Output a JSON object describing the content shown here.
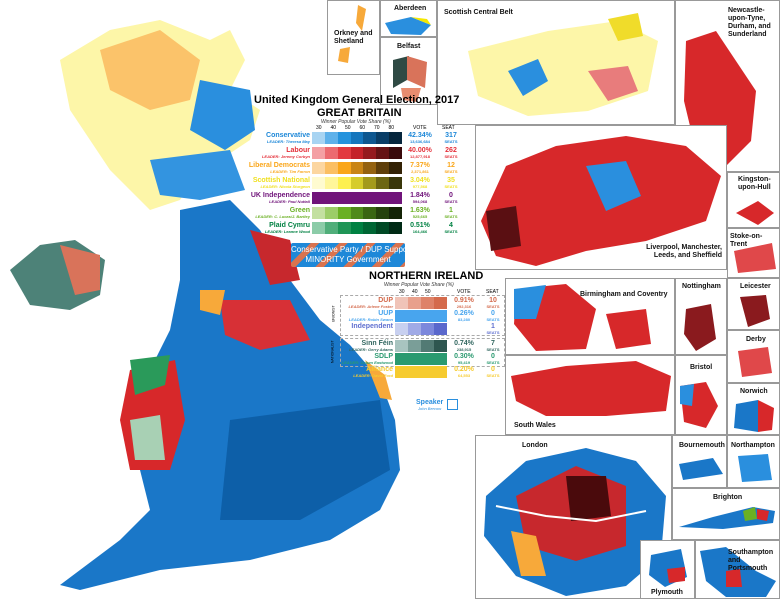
{
  "title": "United Kingdom General Election, 2017",
  "colors": {
    "conservative": "#0087DC",
    "labour": "#DC241F",
    "libdem": "#FAA61A",
    "snp": "#FDF38E",
    "ukip": "#70147A",
    "green": "#6AB023",
    "plaid": "#008142",
    "dup": "#D46A4C",
    "uup": "#48A5EE",
    "sinnfein": "#326760",
    "sdlp": "#2AA82C",
    "alliance": "#F6CB2F",
    "water": "#ffffff"
  },
  "great_britain": {
    "heading": "GREAT BRITAIN",
    "subtitle": "Winner Popular Vote Share (%)",
    "ticks": [
      "30",
      "40",
      "50",
      "60",
      "70",
      "80"
    ],
    "vote_header": "VOTE",
    "seat_header": "SEAT",
    "parties": [
      {
        "name": "Conservative",
        "leader": "LEADER: Theresa May",
        "vote": "42.34%",
        "votes": "13,636,684",
        "seats": "317",
        "seats_label": "SEATS",
        "color": "#1e88d8",
        "shades": [
          "#a8d4f2",
          "#5eb1ea",
          "#2593dd",
          "#1576bd",
          "#0e5790",
          "#093d66",
          "#06263d"
        ]
      },
      {
        "name": "Labour",
        "leader": "LEADER: Jeremy Corbyn",
        "vote": "40.00%",
        "votes": "12,877,918",
        "seats": "262",
        "seats_label": "SEATS",
        "color": "#e4303a",
        "shades": [
          "#f4a0a4",
          "#ec6a70",
          "#e23a40",
          "#c4222a",
          "#951a1f",
          "#651214",
          "#3a0a0b"
        ]
      },
      {
        "name": "Liberal Democrats",
        "leader": "LEADER: Tim Farron",
        "vote": "7.37%",
        "votes": "2,371,861",
        "seats": "12",
        "seats_label": "SEATS",
        "color": "#faa61a",
        "shades": [
          "#fcd6a0",
          "#fbbf63",
          "#faa61a",
          "#c98515",
          "#946210",
          "#5e3e0a",
          "#332205"
        ]
      },
      {
        "name": "Scottish National",
        "leader": "LEADER: Nicola Sturgeon",
        "vote": "3.04%",
        "votes": "977,568",
        "seats": "35",
        "seats_label": "SEATS",
        "color": "#f0e020",
        "shades": [
          "#fffbd0",
          "#fff69a",
          "#fdf050",
          "#d6cc2a",
          "#a39a1c",
          "#6c6612",
          "#3a370a"
        ]
      },
      {
        "name": "UK Independence",
        "leader": "LEADER: Paul Nuttall",
        "vote": "1.84%",
        "votes": "594,068",
        "seats": "0",
        "seats_label": "SEATS",
        "color": "#70147a",
        "shades": [
          "#70147a"
        ]
      },
      {
        "name": "Green",
        "leader": "LEADER: C. Lucas/J. Bartley",
        "vote": "1.63%",
        "votes": "525,665",
        "seats": "1",
        "seats_label": "SEATS",
        "color": "#6ab023",
        "shades": [
          "#c3e0a0",
          "#9ccd68",
          "#6ab023",
          "#4f8a1a",
          "#3a6612",
          "#25420c",
          "#142406"
        ]
      },
      {
        "name": "Plaid Cymru",
        "leader": "LEADER: Leanne Wood",
        "vote": "0.51%",
        "votes": "164,466",
        "seats": "4",
        "seats_label": "SEATS",
        "color": "#008142",
        "shades": [
          "#8ccca8",
          "#50ae7a",
          "#1f9556",
          "#008142",
          "#006634",
          "#004824",
          "#002a15"
        ]
      }
    ]
  },
  "banner": {
    "line1": "Conservative Party / DUP Support",
    "line2": "MINORITY Government"
  },
  "northern_ireland": {
    "heading": "NORTHERN IRELAND",
    "subtitle": "Winner Popular Vote Share (%)",
    "ticks": [
      "30",
      "40",
      "50"
    ],
    "vote_header": "VOTE",
    "seat_header": "SEAT",
    "group_unionist": "UNIONIST",
    "group_nationalist": "NATIONALIST",
    "parties": [
      {
        "name": "DUP",
        "leader": "LEADER: Arlene Foster",
        "vote": "0.91%",
        "votes": "292,316",
        "seats": "10",
        "seats_label": "SEATS",
        "color": "#d46a4c",
        "shades": [
          "#f0c4b8",
          "#e8a08c",
          "#de8268",
          "#d46a4c"
        ]
      },
      {
        "name": "UUP",
        "leader": "LEADER: Robin Swann",
        "vote": "0.26%",
        "votes": "83,280",
        "seats": "0",
        "seats_label": "SEATS",
        "color": "#48a5ee",
        "shades": [
          "#48a5ee"
        ]
      },
      {
        "name": "Independent",
        "leader": "",
        "vote": "",
        "votes": "",
        "seats": "1",
        "seats_label": "SEATS",
        "color": "#6070d0",
        "shades": [
          "#c8d0f0",
          "#a0aae6",
          "#7c88dc",
          "#5a68cc"
        ]
      },
      {
        "name": "Sinn Féin",
        "leader": "LEADER: Gerry Adams",
        "vote": "0.74%",
        "votes": "238,915",
        "seats": "7",
        "seats_label": "SEATS",
        "color": "#326760",
        "shades": [
          "#a8c4c0",
          "#7a9e98",
          "#527a74",
          "#2e5650"
        ]
      },
      {
        "name": "SDLP",
        "leader": "LEADER: Colum Eastwood",
        "vote": "0.30%",
        "votes": "95,419",
        "seats": "0",
        "seats_label": "SEATS",
        "color": "#2a9a70",
        "shades": [
          "#2a9a70"
        ]
      },
      {
        "name": "Alliance",
        "leader": "LEADER: David Ford",
        "vote": "0.20%",
        "votes": "64,553",
        "seats": "0",
        "seats_label": "SEATS",
        "color": "#f6cb2f",
        "shades": [
          "#f6cb2f"
        ]
      }
    ]
  },
  "speaker": {
    "label": "Speaker",
    "name": "John Bercow"
  },
  "insets": [
    {
      "label": "Orkney and Shetland"
    },
    {
      "label": "Aberdeen"
    },
    {
      "label": "Belfast"
    },
    {
      "label": "Scottish Central Belt"
    },
    {
      "label": "Newcastle-upon-Tyne, Durham, and Sunderland"
    },
    {
      "label": "Liverpool, Manchester, Leeds, and Sheffield"
    },
    {
      "label": "Kingston-upon-Hull"
    },
    {
      "label": "Stoke-on-Trent"
    },
    {
      "label": "Birmingham and Coventry"
    },
    {
      "label": "Nottingham"
    },
    {
      "label": "Leicester"
    },
    {
      "label": "Derby"
    },
    {
      "label": "South Wales"
    },
    {
      "label": "Bristol"
    },
    {
      "label": "Norwich"
    },
    {
      "label": "London"
    },
    {
      "label": "Bournemouth"
    },
    {
      "label": "Northampton"
    },
    {
      "label": "Brighton"
    },
    {
      "label": "Plymouth"
    },
    {
      "label": "Southampton and Portsmouth"
    }
  ]
}
